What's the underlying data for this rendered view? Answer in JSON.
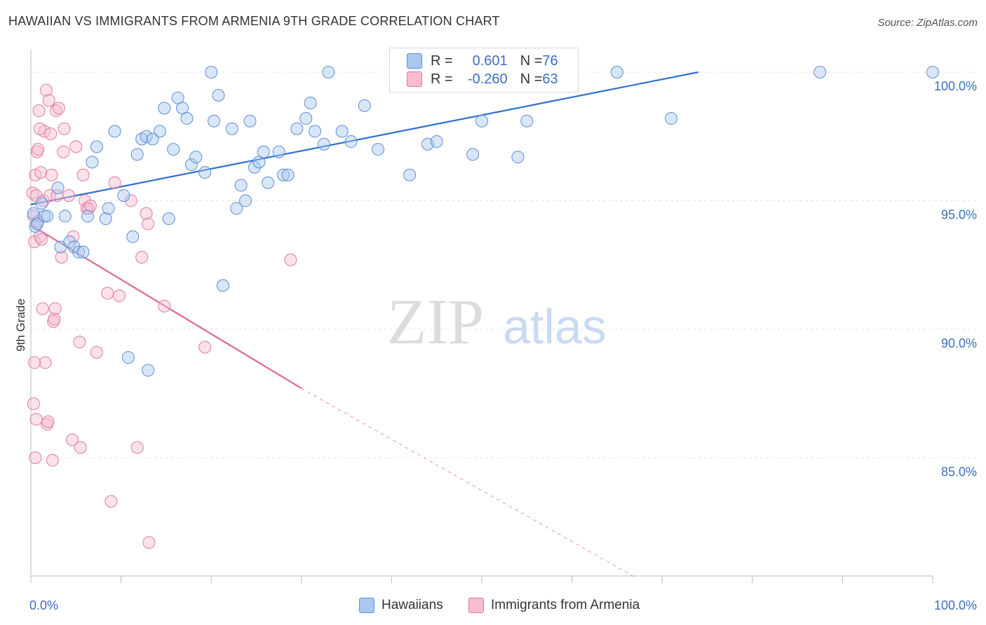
{
  "title": "HAWAIIAN VS IMMIGRANTS FROM ARMENIA 9TH GRADE CORRELATION CHART",
  "source": "Source: ZipAtlas.com",
  "legend_box": {
    "rows": [
      {
        "r_label": "R = ",
        "r_value": "0.601",
        "n_label": "N = ",
        "n_value": "76"
      },
      {
        "r_label": "R = ",
        "r_value": "-0.260",
        "n_label": "N = ",
        "n_value": "63"
      }
    ]
  },
  "bottom_legend": [
    "Hawaiians",
    "Immigrants from Armenia"
  ],
  "colors": {
    "hawaiians_fill": "#a9c8f0",
    "hawaiians_stroke": "#5b8fd6",
    "hawaiians_line": "#2f6fce",
    "armenia_fill": "#f7bcd0",
    "armenia_stroke": "#e27aa0",
    "armenia_line": "#e06592",
    "axis_label": "#3b6fc1",
    "grid": "#e3e3e3"
  },
  "watermark": {
    "zip": "ZIP",
    "atlas": "atlas"
  },
  "chart_data": {
    "type": "scatter",
    "xlabel": "",
    "ylabel": "9th Grade",
    "xlim": [
      0,
      100
    ],
    "ylim": [
      80.4,
      100.9
    ],
    "x_tick_labels": [
      "0.0%",
      "100.0%"
    ],
    "y_tick_labels": [
      "100.0%",
      "95.0%",
      "90.0%",
      "85.0%"
    ],
    "y_ticks": [
      100,
      95,
      90,
      85
    ],
    "grid": true,
    "legend_position": "top-center",
    "series": [
      {
        "name": "Hawaiians",
        "points": [
          [
            0.3,
            94.5
          ],
          [
            0.5,
            94.0
          ],
          [
            0.7,
            94.1
          ],
          [
            1.2,
            94.9
          ],
          [
            1.5,
            94.4
          ],
          [
            1.8,
            94.4
          ],
          [
            3.0,
            95.5
          ],
          [
            3.3,
            93.2
          ],
          [
            3.8,
            94.4
          ],
          [
            4.3,
            93.4
          ],
          [
            4.8,
            93.2
          ],
          [
            5.3,
            93.0
          ],
          [
            5.8,
            93.0
          ],
          [
            6.3,
            94.4
          ],
          [
            6.8,
            96.5
          ],
          [
            7.3,
            97.1
          ],
          [
            8.3,
            94.3
          ],
          [
            8.6,
            94.7
          ],
          [
            9.3,
            97.7
          ],
          [
            10.3,
            95.2
          ],
          [
            10.8,
            88.9
          ],
          [
            11.3,
            93.6
          ],
          [
            11.8,
            96.8
          ],
          [
            12.3,
            97.4
          ],
          [
            12.8,
            97.5
          ],
          [
            13.0,
            88.4
          ],
          [
            14.3,
            97.7
          ],
          [
            14.8,
            98.6
          ],
          [
            15.3,
            94.3
          ],
          [
            15.8,
            97.0
          ],
          [
            16.3,
            99.0
          ],
          [
            16.8,
            98.6
          ],
          [
            17.3,
            98.2
          ],
          [
            17.8,
            96.4
          ],
          [
            18.3,
            96.7
          ],
          [
            19.3,
            96.1
          ],
          [
            20.3,
            98.1
          ],
          [
            20.8,
            99.1
          ],
          [
            21.3,
            91.7
          ],
          [
            22.3,
            97.8
          ],
          [
            22.8,
            94.7
          ],
          [
            23.3,
            95.6
          ],
          [
            23.8,
            95.0
          ],
          [
            24.3,
            98.1
          ],
          [
            24.8,
            96.3
          ],
          [
            25.3,
            96.5
          ],
          [
            25.8,
            96.9
          ],
          [
            26.3,
            95.7
          ],
          [
            27.5,
            96.9
          ],
          [
            28.0,
            96.0
          ],
          [
            28.5,
            96.0
          ],
          [
            29.5,
            97.8
          ],
          [
            30.5,
            98.2
          ],
          [
            31.0,
            98.8
          ],
          [
            31.5,
            97.7
          ],
          [
            32.5,
            97.2
          ],
          [
            34.5,
            97.7
          ],
          [
            35.5,
            97.3
          ],
          [
            37.0,
            98.7
          ],
          [
            38.5,
            97.0
          ],
          [
            42.0,
            96.0
          ],
          [
            44.0,
            97.2
          ],
          [
            45.0,
            97.3
          ],
          [
            49.0,
            96.8
          ],
          [
            50.0,
            98.1
          ],
          [
            51.0,
            100.0
          ],
          [
            54.0,
            96.7
          ],
          [
            55.0,
            98.1
          ],
          [
            60.0,
            100.0
          ],
          [
            65.0,
            100.0
          ],
          [
            71.0,
            98.2
          ],
          [
            87.5,
            100.0
          ],
          [
            100.0,
            100.0
          ],
          [
            20.0,
            100.0
          ],
          [
            33.0,
            100.0
          ],
          [
            13.5,
            97.4
          ]
        ],
        "trend": [
          [
            0,
            94.85
          ],
          [
            74,
            100.0
          ]
        ]
      },
      {
        "name": "Immigrants from Armenia",
        "points": [
          [
            0.2,
            95.3
          ],
          [
            0.3,
            94.4
          ],
          [
            0.4,
            93.4
          ],
          [
            0.5,
            96.0
          ],
          [
            0.6,
            95.2
          ],
          [
            0.7,
            96.9
          ],
          [
            0.8,
            97.0
          ],
          [
            0.9,
            98.5
          ],
          [
            1.0,
            93.6
          ],
          [
            1.1,
            96.1
          ],
          [
            1.2,
            93.5
          ],
          [
            1.3,
            90.8
          ],
          [
            1.4,
            95.0
          ],
          [
            1.5,
            97.7
          ],
          [
            1.6,
            88.7
          ],
          [
            1.7,
            99.3
          ],
          [
            1.8,
            86.3
          ],
          [
            1.9,
            86.4
          ],
          [
            2.0,
            98.9
          ],
          [
            2.1,
            95.2
          ],
          [
            2.2,
            97.6
          ],
          [
            2.3,
            96.0
          ],
          [
            2.4,
            84.9
          ],
          [
            2.5,
            90.3
          ],
          [
            2.6,
            90.4
          ],
          [
            2.7,
            90.8
          ],
          [
            2.8,
            98.5
          ],
          [
            2.9,
            95.2
          ],
          [
            3.1,
            98.6
          ],
          [
            3.4,
            92.8
          ],
          [
            3.6,
            96.9
          ],
          [
            3.7,
            97.8
          ],
          [
            4.2,
            95.2
          ],
          [
            4.6,
            85.7
          ],
          [
            4.7,
            93.6
          ],
          [
            5.0,
            97.1
          ],
          [
            5.4,
            89.5
          ],
          [
            5.5,
            85.4
          ],
          [
            5.8,
            96.0
          ],
          [
            6.0,
            95.0
          ],
          [
            6.2,
            94.7
          ],
          [
            6.4,
            94.7
          ],
          [
            6.6,
            94.8
          ],
          [
            7.3,
            89.1
          ],
          [
            8.5,
            91.4
          ],
          [
            8.9,
            83.3
          ],
          [
            9.3,
            95.7
          ],
          [
            9.8,
            91.3
          ],
          [
            11.1,
            95.0
          ],
          [
            11.8,
            85.4
          ],
          [
            12.3,
            92.8
          ],
          [
            12.8,
            94.5
          ],
          [
            13.0,
            94.1
          ],
          [
            13.1,
            81.7
          ],
          [
            14.8,
            90.9
          ],
          [
            19.3,
            89.3
          ],
          [
            28.8,
            92.7
          ],
          [
            0.4,
            88.7
          ],
          [
            0.3,
            87.1
          ],
          [
            0.6,
            86.5
          ],
          [
            0.5,
            85.0
          ],
          [
            0.8,
            94.2
          ],
          [
            1.0,
            97.8
          ]
        ],
        "trend": [
          [
            0,
            94.05
          ],
          [
            30,
            87.7
          ]
        ],
        "trend_dashed": [
          [
            30,
            87.7
          ],
          [
            67,
            80.35
          ]
        ]
      }
    ]
  }
}
